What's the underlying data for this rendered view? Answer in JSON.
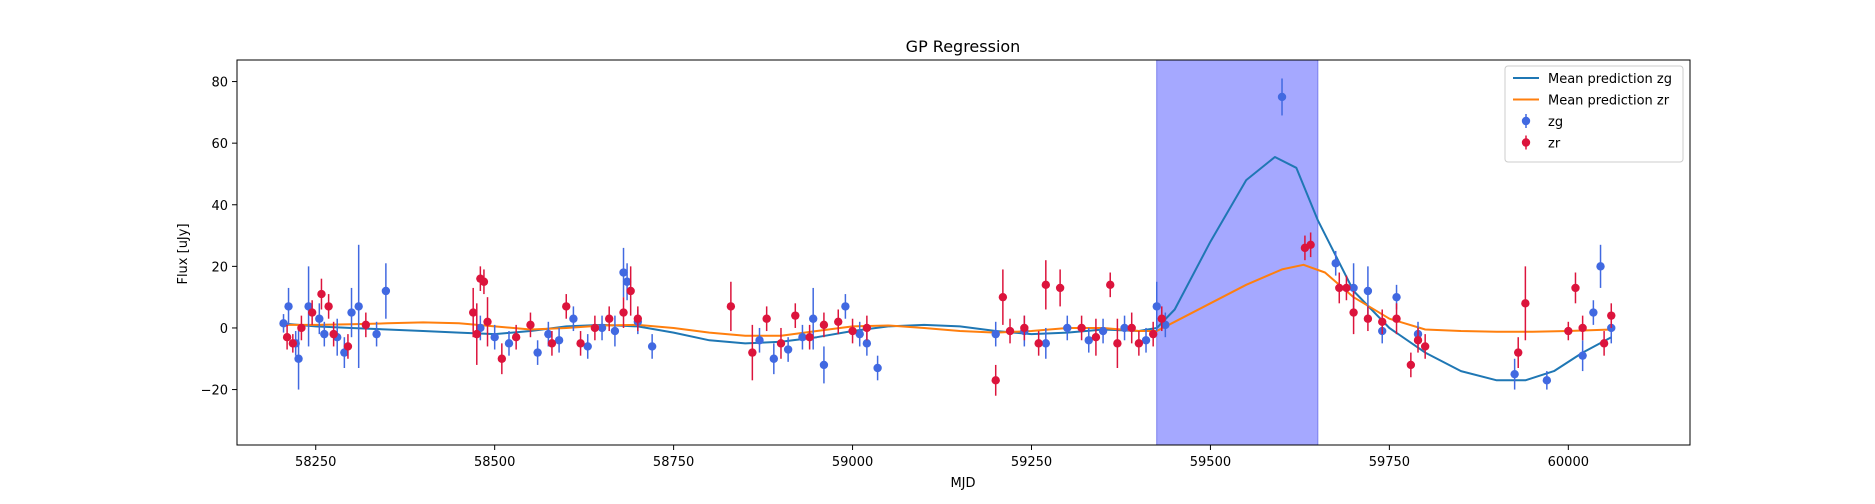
{
  "chart_data": {
    "type": "scatter",
    "title": "GP Regression",
    "xlabel": "MJD",
    "ylabel": "Flux [uJy]",
    "xlim": [
      58140,
      60170
    ],
    "ylim": [
      -38,
      87
    ],
    "xticks": [
      58250,
      58500,
      58750,
      59000,
      59250,
      59500,
      59750,
      60000
    ],
    "yticks": [
      -20,
      0,
      20,
      40,
      60,
      80
    ],
    "grid": false,
    "legend_position": "top-right",
    "highlight_span": {
      "x_start": 59425,
      "x_end": 59650,
      "color": "#a5a8ff"
    },
    "series": [
      {
        "name": "Mean prediction zg",
        "kind": "line",
        "color": "#1f77b4",
        "x": [
          58200,
          58250,
          58300,
          58350,
          58400,
          58450,
          58500,
          58550,
          58600,
          58650,
          58700,
          58750,
          58800,
          58850,
          58900,
          58950,
          59000,
          59050,
          59100,
          59150,
          59200,
          59250,
          59300,
          59350,
          59400,
          59425,
          59450,
          59500,
          59550,
          59590,
          59620,
          59650,
          59700,
          59750,
          59800,
          59850,
          59900,
          59940,
          59980,
          60020,
          60060
        ],
        "y": [
          1.5,
          0.5,
          0,
          -0.5,
          -1,
          -1.5,
          -2,
          -1,
          0.5,
          1,
          0.5,
          -1.5,
          -4,
          -5,
          -4.5,
          -3,
          -1,
          0.5,
          1,
          0.5,
          -1,
          -2,
          -1.5,
          -0.5,
          -1,
          0,
          6,
          28,
          48,
          55.5,
          52,
          35,
          12,
          0,
          -8,
          -14,
          -17,
          -17,
          -14,
          -8,
          -3
        ]
      },
      {
        "name": "Mean prediction zr",
        "kind": "line",
        "color": "#ff7f0e",
        "x": [
          58200,
          58250,
          58300,
          58350,
          58400,
          58450,
          58500,
          58550,
          58600,
          58650,
          58700,
          58750,
          58800,
          58850,
          58900,
          58950,
          59000,
          59050,
          59100,
          59150,
          59200,
          59250,
          59300,
          59350,
          59400,
          59425,
          59450,
          59500,
          59550,
          59600,
          59630,
          59660,
          59700,
          59750,
          59800,
          59850,
          59900,
          59950,
          60000,
          60060
        ],
        "y": [
          1,
          1,
          1.2,
          1.5,
          1.8,
          1.5,
          0.5,
          -0.5,
          0,
          0.8,
          1,
          0,
          -1.5,
          -2.5,
          -2.5,
          -1,
          0.5,
          0.8,
          0,
          -1,
          -1.5,
          -1,
          0,
          0,
          -1,
          -1,
          2,
          8,
          14,
          19,
          20.5,
          18,
          10,
          3,
          -0.5,
          -1,
          -1.2,
          -1.2,
          -1,
          -0.5
        ]
      },
      {
        "name": "zg",
        "kind": "errorbar",
        "color": "#4169e1",
        "x": [
          58205,
          58212,
          58222,
          58226,
          58240,
          58255,
          58262,
          58280,
          58290,
          58300,
          58310,
          58335,
          58348,
          58480,
          58500,
          58520,
          58560,
          58575,
          58590,
          58610,
          58630,
          58650,
          58668,
          58680,
          58685,
          58700,
          58720,
          58870,
          58890,
          58910,
          58930,
          58945,
          58960,
          58990,
          59010,
          59020,
          59035,
          59200,
          59240,
          59270,
          59300,
          59330,
          59350,
          59380,
          59410,
          59425,
          59437,
          59600,
          59675,
          59700,
          59720,
          59740,
          59760,
          59790,
          59925,
          59970,
          60020,
          60035,
          60045,
          60060
        ],
        "y": [
          1.5,
          7,
          -5,
          -10,
          7,
          3,
          -2,
          -3,
          -8,
          5,
          7,
          -2,
          12,
          0,
          -3,
          -5,
          -8,
          -2,
          -4,
          3,
          -6,
          0,
          -1,
          18,
          15,
          2,
          -6,
          -4,
          -10,
          -7,
          -3,
          3,
          -12,
          7,
          -2,
          -5,
          -13,
          -2,
          -1,
          -5,
          0,
          -4,
          -1,
          0,
          -4,
          7,
          1,
          75,
          21,
          13,
          12,
          -1,
          10,
          -2,
          -15,
          -17,
          -9,
          5,
          20,
          0
        ],
        "yerr": [
          3,
          6,
          4,
          10,
          13,
          5,
          4,
          6,
          5,
          8,
          20,
          4,
          9,
          4,
          4,
          4,
          4,
          4,
          4,
          4,
          4,
          4,
          5,
          8,
          6,
          4,
          4,
          4,
          5,
          4,
          4,
          10,
          6,
          4,
          4,
          4,
          4,
          4,
          5,
          5,
          4,
          4,
          4,
          4,
          4,
          8,
          4,
          6,
          4,
          8,
          8,
          4,
          4,
          4,
          5,
          3,
          5,
          4,
          7,
          5
        ]
      },
      {
        "name": "zr",
        "kind": "errorbar",
        "color": "#dc143c",
        "x": [
          58210,
          58218,
          58230,
          58245,
          58258,
          58268,
          58275,
          58295,
          58320,
          58470,
          58475,
          58480,
          58485,
          58490,
          58510,
          58530,
          58550,
          58580,
          58600,
          58620,
          58640,
          58660,
          58680,
          58690,
          58700,
          58830,
          58860,
          58880,
          58900,
          58920,
          58940,
          58960,
          58980,
          59000,
          59020,
          59200,
          59210,
          59220,
          59240,
          59260,
          59270,
          59290,
          59320,
          59340,
          59360,
          59370,
          59390,
          59400,
          59420,
          59432,
          59632,
          59640,
          59680,
          59690,
          59700,
          59720,
          59740,
          59760,
          59780,
          59790,
          59800,
          59930,
          59940,
          60000,
          60010,
          60020,
          60050,
          60060
        ],
        "y": [
          -3,
          -5,
          0,
          5,
          11,
          7,
          -2,
          -6,
          1,
          5,
          -2,
          16,
          15,
          2,
          -10,
          -3,
          1,
          -5,
          7,
          -5,
          0,
          3,
          5,
          12,
          3,
          7,
          -8,
          3,
          -5,
          4,
          -3,
          1,
          2,
          -1,
          0,
          -17,
          10,
          -1,
          0,
          -5,
          14,
          13,
          0,
          -3,
          14,
          -5,
          0,
          -5,
          -2,
          3,
          26,
          27,
          13,
          13,
          5,
          3,
          2,
          3,
          -12,
          -4,
          -6,
          -8,
          8,
          -1,
          13,
          0,
          -5,
          4
        ],
        "yerr": [
          4,
          3,
          4,
          4,
          5,
          4,
          4,
          4,
          4,
          8,
          10,
          4,
          4,
          8,
          5,
          4,
          4,
          4,
          4,
          4,
          4,
          4,
          5,
          8,
          4,
          8,
          9,
          4,
          5,
          4,
          4,
          4,
          4,
          4,
          4,
          5,
          9,
          4,
          4,
          4,
          8,
          6,
          4,
          6,
          4,
          8,
          5,
          4,
          4,
          4,
          4,
          4,
          5,
          4,
          7,
          4,
          4,
          5,
          4,
          4,
          4,
          5,
          12,
          3,
          5,
          4,
          4,
          4
        ]
      }
    ]
  }
}
